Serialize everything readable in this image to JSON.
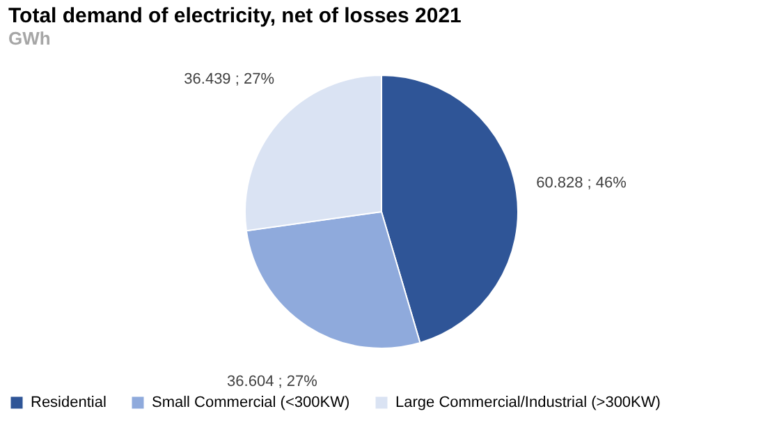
{
  "chart_data": {
    "type": "pie",
    "title": "Total demand of electricity, net of losses 2021",
    "subtitle": "GWh",
    "categories": [
      "Residential",
      "Small Commercial (<300KW)",
      "Large Commercial/Industrial (>300KW)"
    ],
    "values": [
      60.828,
      36.604,
      36.439
    ],
    "colors": [
      "#2f5597",
      "#8faadc",
      "#dae3f3"
    ],
    "value_labels": [
      "60.828 ; 46%",
      "36.604 ; 27%",
      "36.439 ; 27%"
    ],
    "legend": "bottom"
  }
}
